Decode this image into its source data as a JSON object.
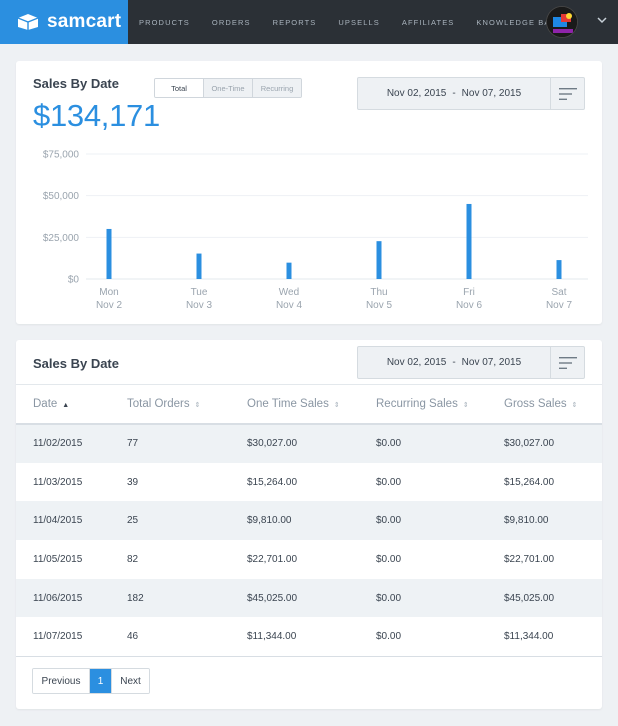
{
  "brand": {
    "name": "samcart",
    "accent": "#2b8fe0",
    "nav_bg": "#2b3036"
  },
  "nav": {
    "items": [
      "Products",
      "Orders",
      "Reports",
      "Upsells",
      "Affiliates",
      "Knowledge Base"
    ],
    "avatar_icon": "user-avatar",
    "menu_icon": "chevron-down-icon"
  },
  "sales_chart_card": {
    "title": "Sales By Date",
    "total": "$134,171",
    "tabs": [
      "Total",
      "One-Time",
      "Recurring"
    ],
    "active_tab": "Total",
    "date_start": "Nov 02, 2015",
    "date_sep": "-",
    "date_end": "Nov 07, 2015",
    "filter_icon": "filter-lines-icon"
  },
  "chart_data": {
    "type": "bar",
    "categories": [
      "Mon Nov 2",
      "Tue Nov 3",
      "Wed Nov 4",
      "Thu Nov 5",
      "Fri Nov 6",
      "Sat Nov 7"
    ],
    "day_labels": [
      "Mon",
      "Tue",
      "Wed",
      "Thu",
      "Fri",
      "Sat"
    ],
    "date_labels": [
      "Nov 2",
      "Nov 3",
      "Nov 4",
      "Nov 5",
      "Nov 6",
      "Nov 7"
    ],
    "values": [
      30027,
      15264,
      9810,
      22701,
      45025,
      11344
    ],
    "yticks": [
      0,
      25000,
      50000,
      75000
    ],
    "ytick_labels": [
      "$0",
      "$25,000",
      "$50,000",
      "$75,000"
    ],
    "ylim": [
      0,
      75000
    ],
    "grid": true,
    "bar_color": "#2b8fe0"
  },
  "sales_table_card": {
    "title": "Sales By Date",
    "date_start": "Nov 02, 2015",
    "date_sep": "-",
    "date_end": "Nov 07, 2015",
    "filter_icon": "filter-lines-icon",
    "columns": [
      "Date",
      "Total Orders",
      "One Time Sales",
      "Recurring Sales",
      "Gross Sales"
    ],
    "sort_icons": [
      "▲",
      "⇕",
      "⇕",
      "⇕",
      "⇕"
    ],
    "rows": [
      [
        "11/02/2015",
        "77",
        "$30,027.00",
        "$0.00",
        "$30,027.00"
      ],
      [
        "11/03/2015",
        "39",
        "$15,264.00",
        "$0.00",
        "$15,264.00"
      ],
      [
        "11/04/2015",
        "25",
        "$9,810.00",
        "$0.00",
        "$9,810.00"
      ],
      [
        "11/05/2015",
        "82",
        "$22,701.00",
        "$0.00",
        "$22,701.00"
      ],
      [
        "11/06/2015",
        "182",
        "$45,025.00",
        "$0.00",
        "$45,025.00"
      ],
      [
        "11/07/2015",
        "46",
        "$11,344.00",
        "$0.00",
        "$11,344.00"
      ]
    ],
    "pager": {
      "previous": "Previous",
      "current": "1",
      "next": "Next"
    }
  }
}
